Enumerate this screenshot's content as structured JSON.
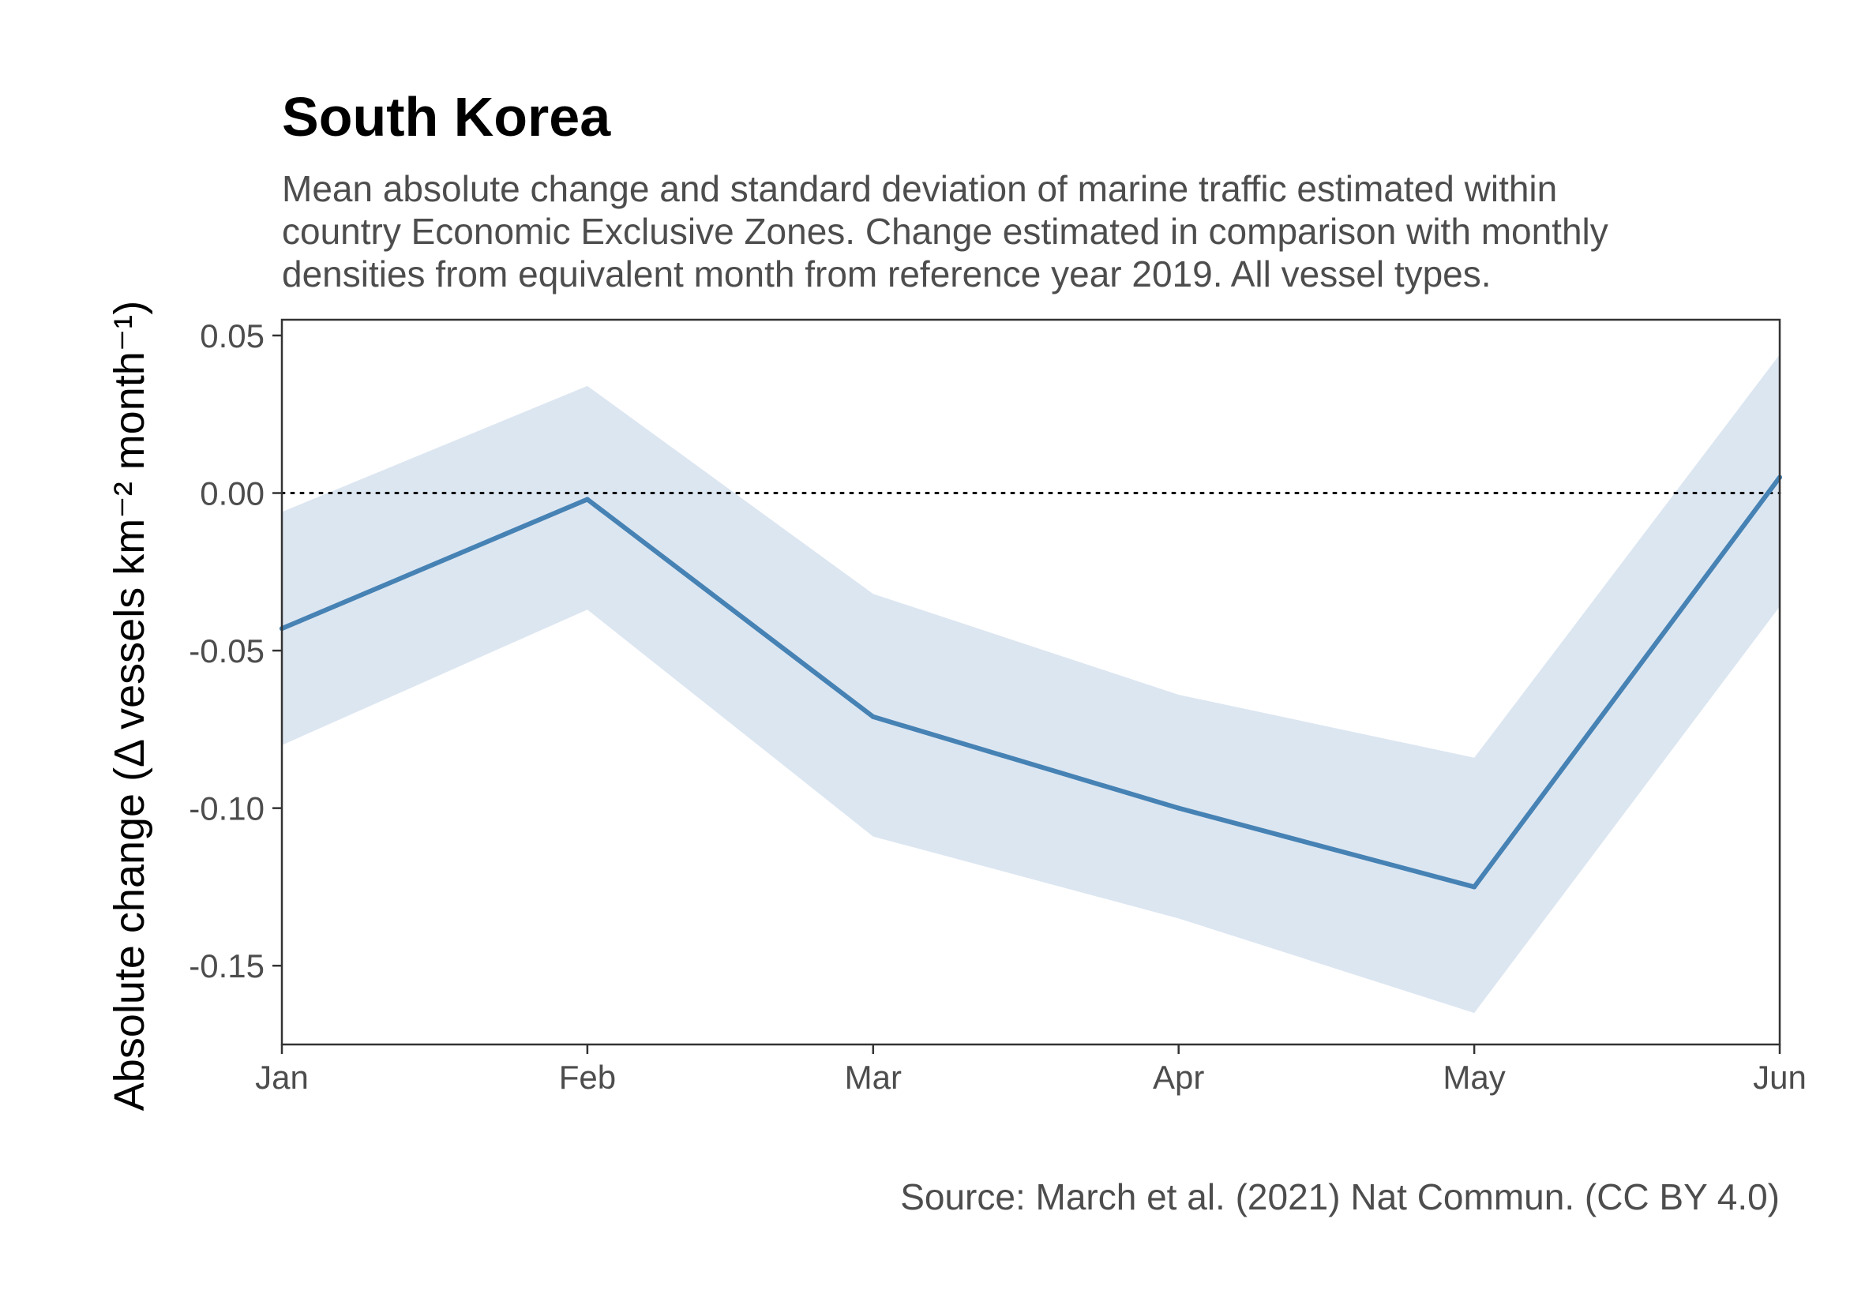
{
  "chart_data": {
    "type": "line",
    "title": "South Korea",
    "subtitle": [
      "Mean absolute change and standard deviation of marine traffic estimated within",
      "country Economic Exclusive Zones. Change estimated in comparison with monthly",
      "densities from equivalent month from reference year 2019. All vessel types."
    ],
    "ylabel": "Absolute change (Δ vessels km⁻² month⁻¹)",
    "xlabel": "",
    "caption": "Source: March et al. (2021) Nat Commun. (CC BY 4.0)",
    "x": [
      "Jan",
      "Feb",
      "Mar",
      "Apr",
      "May",
      "Jun"
    ],
    "x_dates": [
      "2020-01-01",
      "2020-02-01",
      "2020-03-01",
      "2020-04-01",
      "2020-05-01",
      "2020-06-01"
    ],
    "series": [
      {
        "mean": [
          -0.043,
          -0.002,
          -0.071,
          -0.1,
          -0.125,
          0.005
        ],
        "lower": [
          -0.08,
          -0.037,
          -0.109,
          -0.135,
          -0.165,
          -0.036
        ],
        "upper": [
          -0.006,
          0.034,
          -0.032,
          -0.064,
          -0.084,
          0.044
        ]
      }
    ],
    "yticks": [
      "0.05",
      "0.00",
      "-0.05",
      "-0.10",
      "-0.15"
    ],
    "ytick_values": [
      0.05,
      0.0,
      -0.05,
      -0.1,
      -0.15
    ],
    "ylim": [
      -0.175,
      0.055
    ],
    "reference_line": 0,
    "grid": false,
    "legend": "none",
    "colors": {
      "line": "#4682b4",
      "ribbon": "#dce6f1",
      "axis": "#333333",
      "reference": "#000000"
    }
  }
}
